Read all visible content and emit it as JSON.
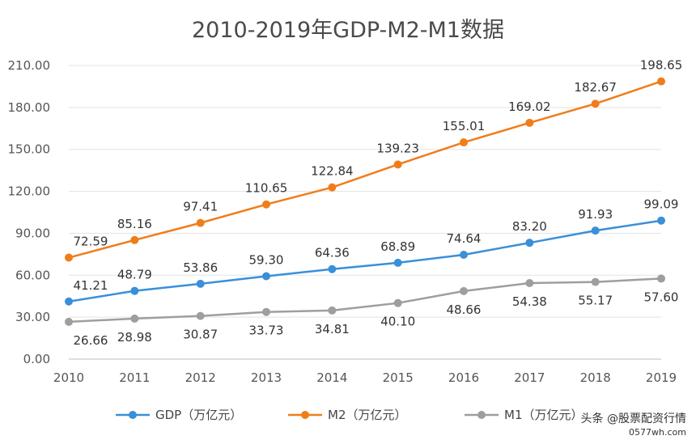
{
  "chart_data": {
    "type": "line",
    "title": "2010-2019年GDP-M2-M1数据",
    "x": [
      "2010",
      "2011",
      "2012",
      "2013",
      "2014",
      "2015",
      "2016",
      "2017",
      "2018",
      "2019"
    ],
    "ylim": [
      0,
      210
    ],
    "yticks": [
      "0.00",
      "30.00",
      "60.00",
      "90.00",
      "120.00",
      "150.00",
      "180.00",
      "210.00"
    ],
    "ytick_values": [
      0,
      30,
      60,
      90,
      120,
      150,
      180,
      210
    ],
    "grid": true,
    "legend_position": "bottom",
    "series": [
      {
        "name": "GDP（万亿元）",
        "color": "#3a8fd9",
        "values": [
          41.21,
          48.79,
          53.86,
          59.3,
          64.36,
          68.89,
          74.64,
          83.2,
          91.93,
          99.09
        ],
        "labels": [
          "41.21",
          "48.79",
          "53.86",
          "59.30",
          "64.36",
          "68.89",
          "74.64",
          "83.20",
          "91.93",
          "99.09"
        ],
        "label_position": "above"
      },
      {
        "name": "M2（万亿元）",
        "color": "#f07d1a",
        "values": [
          72.59,
          85.16,
          97.41,
          110.65,
          122.84,
          139.23,
          155.01,
          169.02,
          182.67,
          198.65
        ],
        "labels": [
          "72.59",
          "85.16",
          "97.41",
          "110.65",
          "122.84",
          "139.23",
          "155.01",
          "169.02",
          "182.67",
          "198.65"
        ],
        "label_position": "above"
      },
      {
        "name": "M1（万亿元）",
        "color": "#9e9e9e",
        "values": [
          26.66,
          28.98,
          30.87,
          33.73,
          34.81,
          40.1,
          48.66,
          54.38,
          55.17,
          57.6
        ],
        "labels": [
          "26.66",
          "28.98",
          "30.87",
          "33.73",
          "34.81",
          "40.10",
          "48.66",
          "54.38",
          "55.17",
          "57.60"
        ],
        "label_position": "below"
      }
    ]
  },
  "watermark": {
    "source": "头条 @股票配资行情",
    "url": "0577wh.com"
  }
}
